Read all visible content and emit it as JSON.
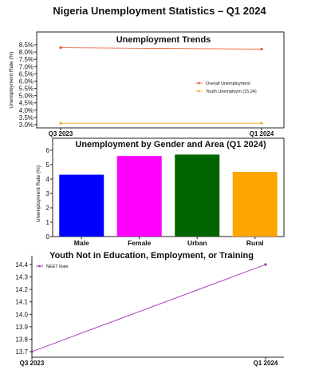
{
  "page": {
    "title": "Nigeria Unemployment Statistics – Q1 2024"
  },
  "chart_data": [
    {
      "type": "line",
      "title": "Unemployment Trends",
      "xlabel": "",
      "ylabel": "Unemployment Rate (%)",
      "x": [
        "Q3 2023",
        "Q1 2024"
      ],
      "ylim": [
        3.0,
        8.5
      ],
      "yticks": [
        "3.0%",
        "3.5%",
        "4.0%",
        "4.5%",
        "5.0%",
        "5.5%",
        "6.0%",
        "6.5%",
        "7.0%",
        "7.5%",
        "8.0%",
        "8.5%"
      ],
      "series": [
        {
          "name": "Overall Unemployment",
          "values": [
            8.3,
            8.2
          ],
          "color": "#e8572a"
        },
        {
          "name": "Youth Unemploym (15.24)",
          "values": [
            3.1,
            3.1
          ],
          "color": "#f5a623"
        }
      ],
      "legend": "center-right",
      "grid": false
    },
    {
      "type": "bar",
      "title": "Unemployment by Gender and Area (Q1 2024)",
      "xlabel": "",
      "ylabel": "Unemployment Rate (%)",
      "categories": [
        "Male",
        "Female",
        "Urban",
        "Rural"
      ],
      "values": [
        4.3,
        5.6,
        5.7,
        4.5
      ],
      "colors": [
        "#0000ff",
        "#ff00ff",
        "#006400",
        "#ffa500"
      ],
      "ylim": [
        0,
        6
      ],
      "yticks": [
        "0",
        "1",
        "2",
        "3",
        "4",
        "5",
        "6"
      ],
      "grid": false
    },
    {
      "type": "line",
      "title": "Youth Not in Education,  Employment, or Training",
      "xlabel": "",
      "ylabel": "",
      "x": [
        "Q3 2023",
        "Q1 2024"
      ],
      "ylim": [
        13.7,
        14.4
      ],
      "yticks": [
        "13.7",
        "13.8",
        "13.9",
        "14.0",
        "14.1",
        "14.2",
        "14.3",
        "14.4"
      ],
      "series": [
        {
          "name": "NEET Rate",
          "values": [
            13.7,
            14.4
          ],
          "color": "#9b30b0"
        }
      ],
      "legend": "top-left",
      "grid": false
    }
  ]
}
